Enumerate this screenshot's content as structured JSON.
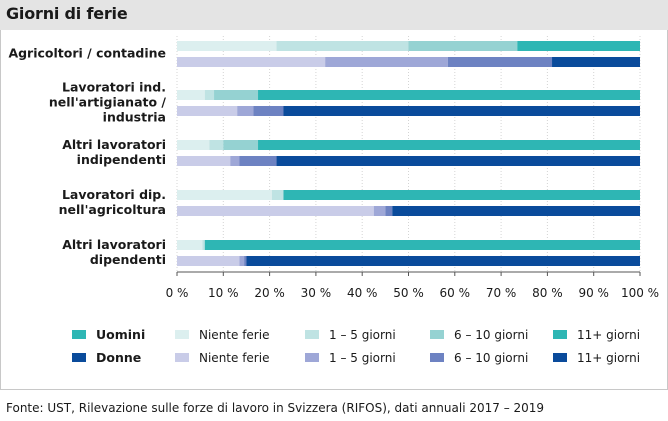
{
  "title": "Giorni di ferie",
  "source": "Fonte: UST, Rilevazione sulle forze di lavoro in Svizzera (RIFOS), dati annuali 2017 – 2019",
  "chart_data": {
    "type": "bar",
    "orientation": "horizontal",
    "stacked": true,
    "percent": true,
    "xlim": [
      0,
      100
    ],
    "x_ticks": [
      "0 %",
      "10 %",
      "20 %",
      "30 %",
      "40 %",
      "50 %",
      "60 %",
      "70 %",
      "80 %",
      "90 %",
      "100 %"
    ],
    "categories": [
      [
        "Agricoltori / contadine"
      ],
      [
        "Lavoratori ind.",
        "nell'artigianato /",
        "industria"
      ],
      [
        "Altri lavoratori",
        "indipendenti"
      ],
      [
        "Lavoratori dip.",
        "nell'agricoltura"
      ],
      [
        "Altri lavoratori",
        "dipendenti"
      ]
    ],
    "segments": [
      "Niente ferie",
      "1 – 5 giorni",
      "6 – 10 giorni",
      "11+ giorni"
    ],
    "groups": [
      {
        "name": "Uomini",
        "colors": [
          "#dcefef",
          "#bfe3e3",
          "#95d2d2",
          "#2eb6b4"
        ],
        "values": [
          [
            21.5,
            28.5,
            23.5,
            26.5
          ],
          [
            6,
            2,
            9.5,
            82.5
          ],
          [
            7,
            3,
            7.5,
            82.5
          ],
          [
            20.5,
            2.5,
            0,
            77
          ],
          [
            5.5,
            0.5,
            0,
            94
          ]
        ]
      },
      {
        "name": "Donne",
        "colors": [
          "#c9cce8",
          "#9ea7d7",
          "#6d82c2",
          "#0a4b9b"
        ],
        "values": [
          [
            32,
            26.5,
            22.5,
            19
          ],
          [
            13,
            3.5,
            6.5,
            77
          ],
          [
            11.5,
            2,
            8,
            78.5
          ],
          [
            42.5,
            2.5,
            1.5,
            53.5
          ],
          [
            13.5,
            1,
            0.5,
            85
          ]
        ]
      }
    ]
  }
}
